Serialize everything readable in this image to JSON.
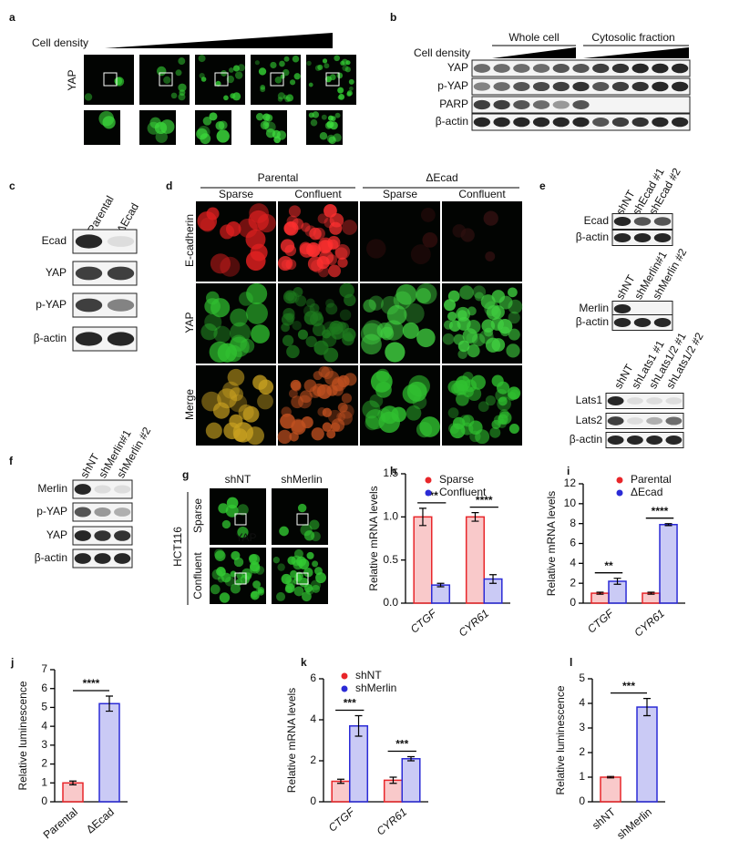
{
  "panels": {
    "a": {
      "letter": "a",
      "axis_label": "Cell density",
      "stain": "YAP"
    },
    "b": {
      "letter": "b",
      "axis_label": "Cell density",
      "groups": [
        "Whole cell",
        "Cytosolic fraction"
      ],
      "rows": [
        "YAP",
        "p-YAP",
        "PARP",
        "β-actin"
      ]
    },
    "c": {
      "letter": "c",
      "columns": [
        "Parental",
        "ΔEcad"
      ],
      "rows": [
        "Ecad",
        "YAP",
        "p-YAP",
        "β-actin"
      ]
    },
    "d": {
      "letter": "d",
      "groups": [
        "Parental",
        "ΔEcad"
      ],
      "columns": [
        "Sparse",
        "Confluent",
        "Sparse",
        "Confluent"
      ],
      "rows": [
        "E-cadherin",
        "YAP",
        "Merge"
      ]
    },
    "e": {
      "letter": "e",
      "blots": [
        {
          "columns": [
            "shNT",
            "shEcad #1",
            "shEcad #2"
          ],
          "rows": [
            "Ecad",
            "β-actin"
          ]
        },
        {
          "columns": [
            "shNT",
            "shMerlin#1",
            "shMerlin #2"
          ],
          "rows": [
            "Merlin",
            "β-actin"
          ]
        },
        {
          "columns": [
            "shNT",
            "shLats1 #1",
            "shLats1/2 #1",
            "shLats1/2 #2"
          ],
          "rows": [
            "Lats1",
            "Lats2",
            "β-actin"
          ]
        }
      ]
    },
    "f": {
      "letter": "f",
      "columns": [
        "shNT",
        "shMerlin#1",
        "shMerlin #2"
      ],
      "rows": [
        "Merlin",
        "p-YAP",
        "YAP",
        "β-actin"
      ]
    },
    "g": {
      "letter": "g",
      "cell_line": "HCT116",
      "columns": [
        "shNT",
        "shMerlin"
      ],
      "rows": [
        "Sparse",
        "Confluent"
      ],
      "stain": "YAP"
    }
  },
  "chart_data": [
    {
      "type": "bar",
      "panel": "h",
      "y_label": "Relative mRNA levels",
      "categories": [
        "CTGF",
        "CYR61"
      ],
      "series": [
        {
          "name": "Sparse",
          "color": "#e8262a",
          "values": [
            1.0,
            1.0
          ],
          "errors": [
            0.1,
            0.05
          ]
        },
        {
          "name": "Confluent",
          "color": "#2b2bd6",
          "values": [
            0.21,
            0.28
          ],
          "errors": [
            0.02,
            0.05
          ]
        }
      ],
      "significance": [
        "***",
        "****"
      ],
      "ylim": [
        0,
        1.5
      ],
      "yticks": [
        {
          "value": 0,
          "label": "0.0"
        },
        0.5,
        {
          "value": 1,
          "label": "1.0"
        },
        1.5
      ]
    },
    {
      "type": "bar",
      "panel": "i",
      "y_label": "Relative mRNA levels",
      "categories": [
        "CTGF",
        "CYR61"
      ],
      "series": [
        {
          "name": "Parental",
          "color": "#e8262a",
          "values": [
            1.0,
            1.0
          ],
          "errors": [
            0.1,
            0.1
          ]
        },
        {
          "name": "ΔEcad",
          "color": "#2b2bd6",
          "values": [
            2.2,
            7.9
          ],
          "errors": [
            0.3,
            0.1
          ]
        }
      ],
      "significance": [
        "**",
        "****"
      ],
      "ylim": [
        0,
        12
      ],
      "yticks": [
        0,
        2,
        4,
        6,
        8,
        10,
        12
      ]
    },
    {
      "type": "bar",
      "panel": "j",
      "y_label": "Relative luminescence",
      "categories": [
        "Parental",
        "ΔEcad"
      ],
      "values": [
        1.0,
        5.2
      ],
      "errors": [
        0.1,
        0.4
      ],
      "colors": [
        "#e8262a",
        "#2b2bd6"
      ],
      "significance": "****",
      "ylim": [
        0,
        7
      ],
      "yticks": [
        0,
        1,
        2,
        3,
        4,
        5,
        6,
        7
      ]
    },
    {
      "type": "bar",
      "panel": "k",
      "y_label": "Relative mRNA levels",
      "categories": [
        "CTGF",
        "CYR61"
      ],
      "series": [
        {
          "name": "shNT",
          "color": "#e8262a",
          "values": [
            1.0,
            1.05
          ],
          "errors": [
            0.1,
            0.15
          ]
        },
        {
          "name": "shMerlin",
          "color": "#2b2bd6",
          "values": [
            3.7,
            2.1
          ],
          "errors": [
            0.5,
            0.1
          ]
        }
      ],
      "significance": [
        "***",
        "***"
      ],
      "ylim": [
        0,
        6
      ],
      "yticks": [
        0,
        2,
        4,
        6
      ]
    },
    {
      "type": "bar",
      "panel": "l",
      "y_label": "Relative luminescence",
      "categories": [
        "shNT",
        "shMerlin"
      ],
      "values": [
        1.0,
        3.85
      ],
      "errors": [
        0.03,
        0.35
      ],
      "colors": [
        "#e8262a",
        "#2b2bd6"
      ],
      "significance": "***",
      "ylim": [
        0,
        5
      ],
      "yticks": [
        0,
        1,
        2,
        3,
        4,
        5
      ]
    }
  ]
}
